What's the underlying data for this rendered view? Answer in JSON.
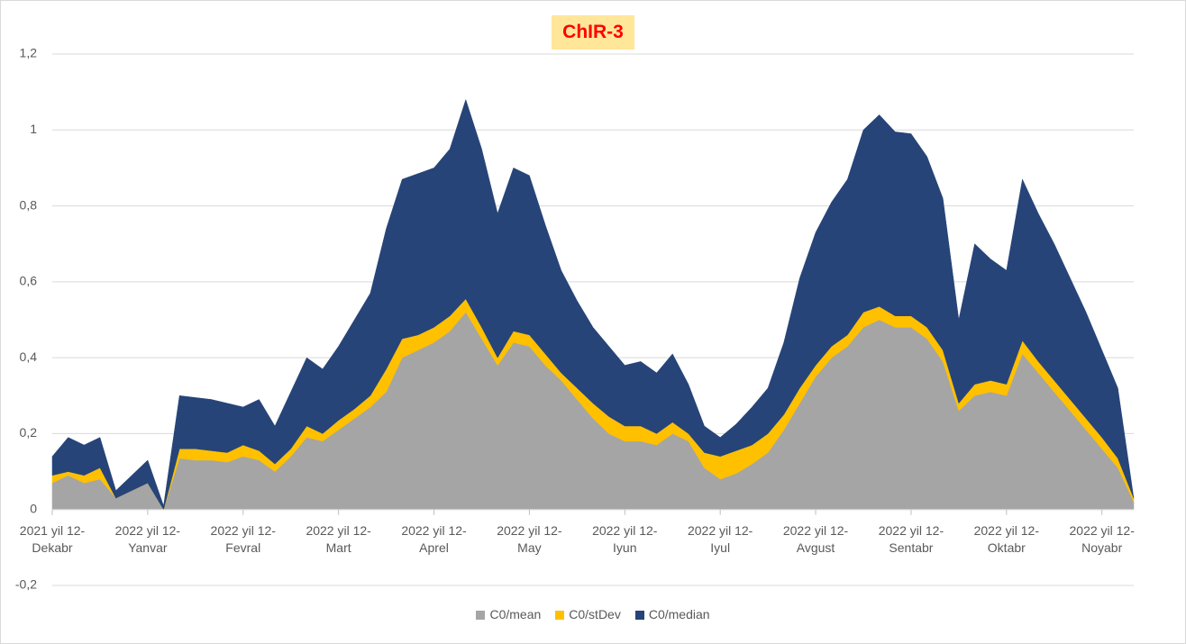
{
  "chart_data": {
    "type": "stacked_area",
    "title": "ChIR-3",
    "categories": [
      "2021 yil 12- Dekabr",
      null,
      null,
      null,
      null,
      null,
      "2022 yil 12- Yanvar",
      null,
      null,
      null,
      null,
      null,
      "2022 yil 12- Fevral",
      null,
      null,
      null,
      null,
      null,
      "2022 yil 12- Mart",
      null,
      null,
      null,
      null,
      null,
      "2022 yil 12- Aprel",
      null,
      null,
      null,
      null,
      null,
      "2022 yil 12- May",
      null,
      null,
      null,
      null,
      null,
      "2022 yil 12- Iyun",
      null,
      null,
      null,
      null,
      null,
      "2022 yil 12- Iyul",
      null,
      null,
      null,
      null,
      null,
      "2022 yil 12- Avgust",
      null,
      null,
      null,
      null,
      null,
      "2022 yil 12- Sentabr",
      null,
      null,
      null,
      null,
      null,
      "2022 yil 12- Oktabr",
      null,
      null,
      null,
      null,
      null,
      "2022 yil 12- Noyabr",
      null,
      null
    ],
    "series": [
      {
        "name": "C0/mean",
        "color": "#a5a5a5",
        "values": [
          0.07,
          0.09,
          0.07,
          0.08,
          0.03,
          0.05,
          0.07,
          0,
          0.135,
          0.13,
          0.13,
          0.125,
          0.14,
          0.13,
          0.1,
          0.14,
          0.19,
          0.18,
          0.21,
          0.24,
          0.27,
          0.31,
          0.4,
          0.42,
          0.44,
          0.47,
          0.52,
          0.45,
          0.38,
          0.44,
          0.43,
          0.38,
          0.34,
          0.29,
          0.24,
          0.2,
          0.18,
          0.18,
          0.17,
          0.2,
          0.18,
          0.11,
          0.08,
          0.095,
          0.12,
          0.15,
          0.21,
          0.28,
          0.35,
          0.4,
          0.43,
          0.48,
          0.5,
          0.48,
          0.48,
          0.45,
          0.39,
          0.26,
          0.3,
          0.31,
          0.3,
          0.41,
          0.36,
          0.31,
          0.26,
          0.21,
          0.16,
          0.11,
          0.02
        ]
      },
      {
        "name": "C0/stDev",
        "color": "#ffc000",
        "values": [
          0.02,
          0.01,
          0.02,
          0.03,
          0,
          0,
          0,
          0,
          0.025,
          0.03,
          0.025,
          0.025,
          0.03,
          0.025,
          0.02,
          0.02,
          0.03,
          0.02,
          0.025,
          0.025,
          0.03,
          0.06,
          0.05,
          0.04,
          0.04,
          0.04,
          0.035,
          0.03,
          0.02,
          0.03,
          0.03,
          0.03,
          0.02,
          0.03,
          0.04,
          0.045,
          0.04,
          0.04,
          0.03,
          0.03,
          0.02,
          0.04,
          0.06,
          0.06,
          0.05,
          0.05,
          0.04,
          0.04,
          0.03,
          0.03,
          0.03,
          0.04,
          0.035,
          0.03,
          0.03,
          0.03,
          0.03,
          0.02,
          0.03,
          0.03,
          0.03,
          0.035,
          0.03,
          0.03,
          0.03,
          0.03,
          0.03,
          0.025,
          0.01
        ]
      },
      {
        "name": "C0/median",
        "color": "#264478",
        "values": [
          0.05,
          0.09,
          0.08,
          0.08,
          0.02,
          0.04,
          0.06,
          0.01,
          0.14,
          0.135,
          0.135,
          0.13,
          0.1,
          0.135,
          0.1,
          0.15,
          0.18,
          0.17,
          0.195,
          0.235,
          0.27,
          0.37,
          0.42,
          0.425,
          0.42,
          0.44,
          0.525,
          0.47,
          0.38,
          0.43,
          0.42,
          0.34,
          0.27,
          0.23,
          0.2,
          0.185,
          0.16,
          0.17,
          0.16,
          0.18,
          0.13,
          0.07,
          0.05,
          0.07,
          0.1,
          0.12,
          0.19,
          0.29,
          0.35,
          0.38,
          0.41,
          0.48,
          0.505,
          0.485,
          0.48,
          0.45,
          0.4,
          0.22,
          0.37,
          0.32,
          0.3,
          0.425,
          0.39,
          0.36,
          0.32,
          0.28,
          0.23,
          0.185,
          0
        ]
      }
    ],
    "ylim": [
      -0.2,
      1.2
    ],
    "yticks": [
      {
        "value": -0.2,
        "label": "-0,2"
      },
      0,
      {
        "value": 0.2,
        "label": "0,2"
      },
      {
        "value": 0.4,
        "label": "0,4"
      },
      {
        "value": 0.6,
        "label": "0,6"
      },
      {
        "value": 0.8,
        "label": "0,8"
      },
      1,
      {
        "value": 1.2,
        "label": "1,2"
      }
    ],
    "grid": true,
    "legend": "bottom"
  }
}
